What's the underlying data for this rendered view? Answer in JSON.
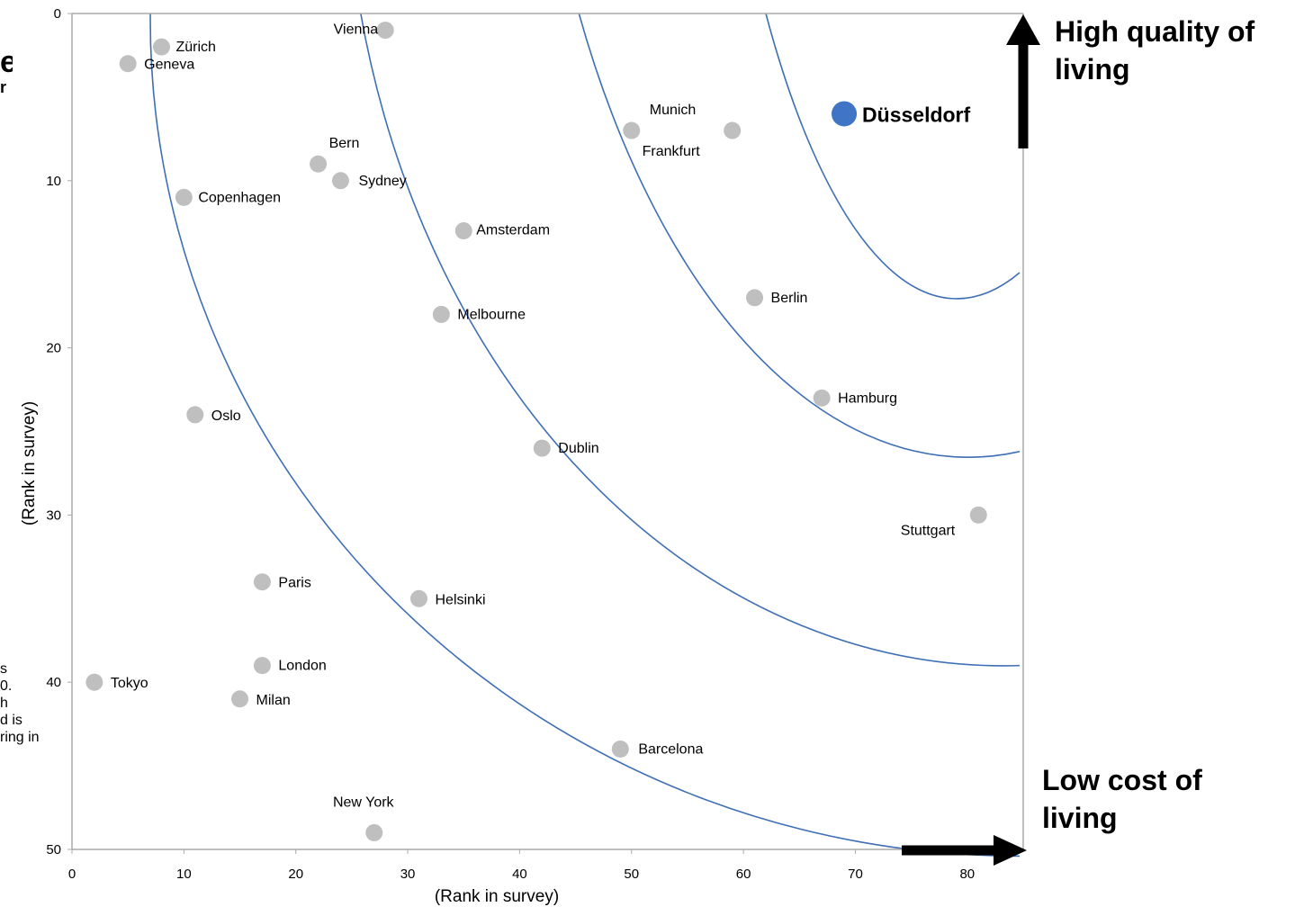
{
  "chart_data": {
    "type": "scatter",
    "xlabel": "(Rank in survey)",
    "ylabel": "(Rank in survey)",
    "xlim": [
      0,
      85
    ],
    "ylim": [
      0,
      50
    ],
    "y_inverted": true,
    "xticks": [
      0,
      10,
      20,
      30,
      40,
      50,
      60,
      70,
      80
    ],
    "yticks": [
      0,
      10,
      20,
      30,
      40,
      50
    ],
    "grid": false,
    "colors": {
      "point": "#bfbfbf",
      "highlight": "#3f75c4",
      "arc": "#3f6fb5",
      "axis": "#aaaaaa"
    },
    "points": [
      {
        "name": "Zürich",
        "x": 8,
        "y": 2
      },
      {
        "name": "Geneva",
        "x": 5,
        "y": 3
      },
      {
        "name": "Vienna",
        "x": 28,
        "y": 1
      },
      {
        "name": "Munich",
        "x": 50,
        "y": 7
      },
      {
        "name": "Frankfurt",
        "x": 59,
        "y": 7
      },
      {
        "name": "Düsseldorf",
        "x": 69,
        "y": 6,
        "highlight": true
      },
      {
        "name": "Bern",
        "x": 22,
        "y": 9
      },
      {
        "name": "Sydney",
        "x": 24,
        "y": 10
      },
      {
        "name": "Copenhagen",
        "x": 10,
        "y": 11
      },
      {
        "name": "Amsterdam",
        "x": 35,
        "y": 13
      },
      {
        "name": "Berlin",
        "x": 61,
        "y": 17
      },
      {
        "name": "Melbourne",
        "x": 33,
        "y": 18
      },
      {
        "name": "Hamburg",
        "x": 67,
        "y": 23
      },
      {
        "name": "Oslo",
        "x": 11,
        "y": 24
      },
      {
        "name": "Dublin",
        "x": 42,
        "y": 26
      },
      {
        "name": "Stuttgart",
        "x": 81,
        "y": 30
      },
      {
        "name": "Paris",
        "x": 17,
        "y": 34
      },
      {
        "name": "Helsinki",
        "x": 31,
        "y": 35
      },
      {
        "name": "London",
        "x": 17,
        "y": 39
      },
      {
        "name": "Tokyo",
        "x": 2,
        "y": 40
      },
      {
        "name": "Milan",
        "x": 15,
        "y": 41
      },
      {
        "name": "Barcelona",
        "x": 49,
        "y": 44
      },
      {
        "name": "New York",
        "x": 27,
        "y": 49
      }
    ],
    "arcs": [
      {
        "start_x": 7,
        "end_y": 50.4
      },
      {
        "start_x": 25.8,
        "end_y": 39
      },
      {
        "start_x": 45.3,
        "end_y": 26.2
      },
      {
        "start_x": 62,
        "end_y": 15.5
      }
    ]
  },
  "annotations": {
    "quality": [
      "High quality of",
      "living"
    ],
    "cost": [
      "Low cost of",
      "living"
    ]
  },
  "cut_off_text": {
    "top_left": [
      "e",
      "r"
    ],
    "bottom_left": [
      "s",
      "0.",
      "h",
      "d is",
      "ring in"
    ]
  }
}
